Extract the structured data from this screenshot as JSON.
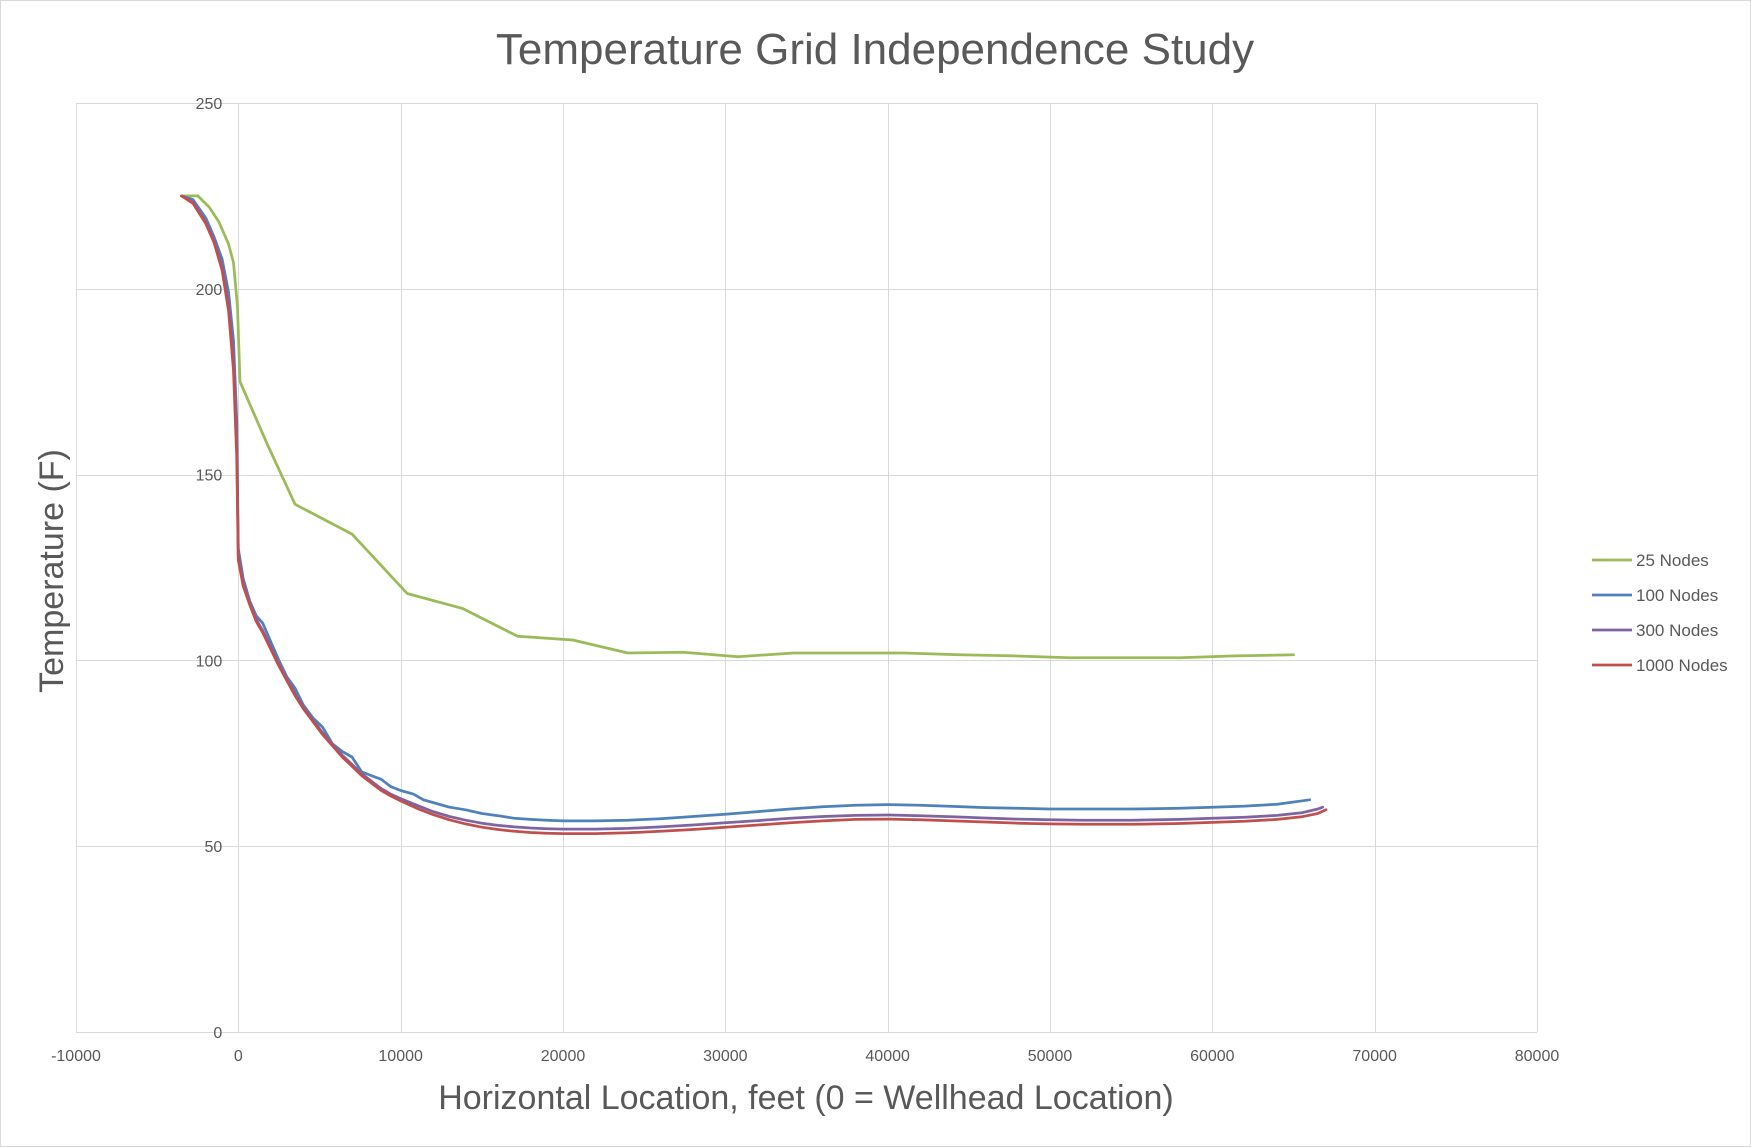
{
  "chart_data": {
    "type": "line",
    "title": "Temperature Grid Independence Study",
    "xlabel": "Horizontal Location, feet (0 = Wellhead Location)",
    "ylabel": "Temperature (F)",
    "xlim": [
      -10000,
      80000
    ],
    "ylim": [
      0,
      250
    ],
    "x_ticks": [
      -10000,
      0,
      10000,
      20000,
      30000,
      40000,
      50000,
      60000,
      70000,
      80000
    ],
    "y_ticks": [
      0,
      50,
      100,
      150,
      200,
      250
    ],
    "x_tick_labels": [
      "-10000",
      "0",
      "10000",
      "20000",
      "30000",
      "40000",
      "50000",
      "60000",
      "70000",
      "80000"
    ],
    "y_tick_labels": [
      "0",
      "50",
      "100",
      "150",
      "200",
      "250"
    ],
    "grid": true,
    "legend_position": "right",
    "series": [
      {
        "name": "25 Nodes",
        "color": "#9bbb59",
        "points": [
          [
            -3500,
            225
          ],
          [
            -2500,
            225
          ],
          [
            -1800,
            222
          ],
          [
            -1200,
            218
          ],
          [
            -600,
            212
          ],
          [
            -300,
            207
          ],
          [
            -50,
            195
          ],
          [
            100,
            175
          ],
          [
            1800,
            158
          ],
          [
            3500,
            142
          ],
          [
            7000,
            134
          ],
          [
            10400,
            118
          ],
          [
            13800,
            114
          ],
          [
            17200,
            106.5
          ],
          [
            20600,
            105.5
          ],
          [
            24000,
            102
          ],
          [
            27400,
            102.2
          ],
          [
            30800,
            101
          ],
          [
            34200,
            102
          ],
          [
            37600,
            102
          ],
          [
            41000,
            102
          ],
          [
            44400,
            101.5
          ],
          [
            47800,
            101.2
          ],
          [
            51200,
            100.7
          ],
          [
            54600,
            100.7
          ],
          [
            58000,
            100.7
          ],
          [
            61400,
            101.2
          ],
          [
            65000,
            101.5
          ]
        ]
      },
      {
        "name": "100 Nodes",
        "color": "#4f81bd",
        "points": [
          [
            -3500,
            225
          ],
          [
            -2800,
            224
          ],
          [
            -2000,
            219
          ],
          [
            -1500,
            214
          ],
          [
            -1000,
            208
          ],
          [
            -600,
            199
          ],
          [
            -300,
            186
          ],
          [
            -100,
            165
          ],
          [
            0,
            130
          ],
          [
            300,
            122
          ],
          [
            700,
            116
          ],
          [
            1100,
            112
          ],
          [
            1500,
            110
          ],
          [
            2000,
            105
          ],
          [
            2500,
            100
          ],
          [
            3000,
            95.5
          ],
          [
            3500,
            92.5
          ],
          [
            4000,
            88
          ],
          [
            4600,
            84.5
          ],
          [
            5200,
            82
          ],
          [
            5800,
            77.5
          ],
          [
            6400,
            75.5
          ],
          [
            7000,
            74
          ],
          [
            7600,
            70
          ],
          [
            8200,
            69
          ],
          [
            8800,
            68
          ],
          [
            9400,
            66
          ],
          [
            10000,
            65
          ],
          [
            10800,
            64
          ],
          [
            11400,
            62.5
          ],
          [
            12200,
            61.5
          ],
          [
            13000,
            60.5
          ],
          [
            14000,
            59.8
          ],
          [
            15000,
            58.8
          ],
          [
            16000,
            58.2
          ],
          [
            17000,
            57.5
          ],
          [
            18000,
            57.2
          ],
          [
            19000,
            57
          ],
          [
            20000,
            56.8
          ],
          [
            22000,
            56.8
          ],
          [
            24000,
            57
          ],
          [
            26000,
            57.4
          ],
          [
            28000,
            58
          ],
          [
            30000,
            58.6
          ],
          [
            32000,
            59.3
          ],
          [
            34000,
            60
          ],
          [
            36000,
            60.6
          ],
          [
            38000,
            61
          ],
          [
            40000,
            61.2
          ],
          [
            42000,
            61
          ],
          [
            44000,
            60.7
          ],
          [
            46000,
            60.4
          ],
          [
            48000,
            60.2
          ],
          [
            50000,
            60
          ],
          [
            52000,
            60
          ],
          [
            55000,
            60
          ],
          [
            58000,
            60.2
          ],
          [
            60000,
            60.5
          ],
          [
            62000,
            60.8
          ],
          [
            64000,
            61.3
          ],
          [
            66000,
            62.5
          ]
        ]
      },
      {
        "name": "300 Nodes",
        "color": "#8064a2",
        "points": [
          [
            -3500,
            225
          ],
          [
            -2800,
            223.5
          ],
          [
            -2000,
            218
          ],
          [
            -1500,
            213
          ],
          [
            -1000,
            206
          ],
          [
            -600,
            196
          ],
          [
            -300,
            182
          ],
          [
            -100,
            160
          ],
          [
            0,
            128
          ],
          [
            300,
            121
          ],
          [
            700,
            115.5
          ],
          [
            1100,
            111
          ],
          [
            1500,
            108
          ],
          [
            2000,
            103.5
          ],
          [
            2500,
            99
          ],
          [
            3000,
            95
          ],
          [
            3500,
            91
          ],
          [
            4000,
            87.5
          ],
          [
            4600,
            84
          ],
          [
            5200,
            80.5
          ],
          [
            5800,
            77.5
          ],
          [
            6400,
            74.5
          ],
          [
            7000,
            72
          ],
          [
            7600,
            69.5
          ],
          [
            8200,
            67.5
          ],
          [
            8800,
            65.5
          ],
          [
            9400,
            64
          ],
          [
            10000,
            62.8
          ],
          [
            11000,
            61
          ],
          [
            12000,
            59.3
          ],
          [
            13000,
            58
          ],
          [
            14000,
            57
          ],
          [
            15000,
            56.2
          ],
          [
            16000,
            55.6
          ],
          [
            17000,
            55.2
          ],
          [
            18000,
            54.9
          ],
          [
            19000,
            54.7
          ],
          [
            20000,
            54.6
          ],
          [
            22000,
            54.6
          ],
          [
            24000,
            54.8
          ],
          [
            26000,
            55.2
          ],
          [
            28000,
            55.7
          ],
          [
            30000,
            56.3
          ],
          [
            32000,
            56.9
          ],
          [
            34000,
            57.5
          ],
          [
            36000,
            58
          ],
          [
            38000,
            58.3
          ],
          [
            40000,
            58.4
          ],
          [
            42000,
            58.2
          ],
          [
            44000,
            57.9
          ],
          [
            46000,
            57.6
          ],
          [
            48000,
            57.3
          ],
          [
            50000,
            57.1
          ],
          [
            52000,
            57
          ],
          [
            55000,
            57
          ],
          [
            58000,
            57.2
          ],
          [
            60000,
            57.5
          ],
          [
            62000,
            57.8
          ],
          [
            64000,
            58.3
          ],
          [
            65500,
            59
          ],
          [
            66500,
            60
          ],
          [
            66800,
            60.5
          ]
        ]
      },
      {
        "name": "1000 Nodes",
        "color": "#c0504d",
        "points": [
          [
            -3500,
            225
          ],
          [
            -2800,
            223
          ],
          [
            -2000,
            217.5
          ],
          [
            -1500,
            212.5
          ],
          [
            -1000,
            205
          ],
          [
            -600,
            194
          ],
          [
            -300,
            178
          ],
          [
            -100,
            155
          ],
          [
            0,
            127
          ],
          [
            300,
            120
          ],
          [
            700,
            115
          ],
          [
            1100,
            110.5
          ],
          [
            1500,
            107.5
          ],
          [
            2000,
            103
          ],
          [
            2500,
            98.5
          ],
          [
            3000,
            94.5
          ],
          [
            3500,
            90.5
          ],
          [
            4000,
            87
          ],
          [
            4600,
            83.5
          ],
          [
            5200,
            80
          ],
          [
            5800,
            77
          ],
          [
            6400,
            74
          ],
          [
            7000,
            71.5
          ],
          [
            7600,
            69
          ],
          [
            8200,
            67
          ],
          [
            8800,
            65
          ],
          [
            9400,
            63.5
          ],
          [
            10000,
            62.2
          ],
          [
            11000,
            60.2
          ],
          [
            12000,
            58.5
          ],
          [
            13000,
            57.1
          ],
          [
            14000,
            56
          ],
          [
            15000,
            55.1
          ],
          [
            16000,
            54.5
          ],
          [
            17000,
            54
          ],
          [
            18000,
            53.7
          ],
          [
            19000,
            53.5
          ],
          [
            20000,
            53.4
          ],
          [
            22000,
            53.4
          ],
          [
            24000,
            53.6
          ],
          [
            26000,
            54
          ],
          [
            28000,
            54.5
          ],
          [
            30000,
            55.1
          ],
          [
            32000,
            55.7
          ],
          [
            34000,
            56.3
          ],
          [
            36000,
            56.8
          ],
          [
            38000,
            57.2
          ],
          [
            40000,
            57.3
          ],
          [
            42000,
            57.1
          ],
          [
            44000,
            56.8
          ],
          [
            46000,
            56.5
          ],
          [
            48000,
            56.2
          ],
          [
            50000,
            56
          ],
          [
            52000,
            55.9
          ],
          [
            55000,
            55.9
          ],
          [
            58000,
            56.1
          ],
          [
            60000,
            56.4
          ],
          [
            62000,
            56.7
          ],
          [
            64000,
            57.2
          ],
          [
            65500,
            57.9
          ],
          [
            66500,
            58.8
          ],
          [
            67000,
            59.8
          ]
        ]
      }
    ]
  }
}
